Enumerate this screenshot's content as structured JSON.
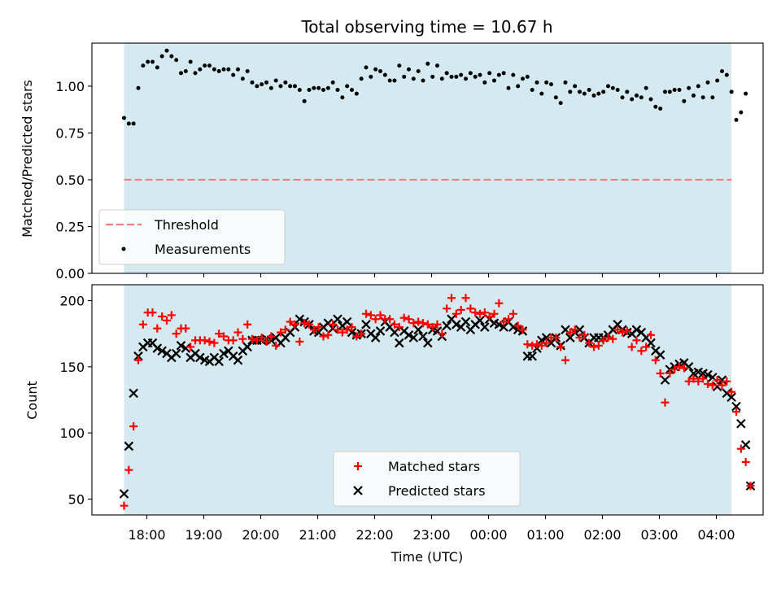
{
  "colors": {
    "background_band": "#d4eaf0",
    "threshold": "#f08080",
    "measurements": "#000000",
    "matched": "#ff0000",
    "predicted": "#000000"
  },
  "chart_data": [
    {
      "type": "scatter",
      "title": "Total observing time = 10.67 h",
      "xlabel": "",
      "ylabel": "Matched/Predicted stars",
      "ylim": [
        0,
        1.23
      ],
      "yticks": [
        "0.00",
        "0.25",
        "0.50",
        "0.75",
        "1.00"
      ],
      "grid": false,
      "legend": "lower-left",
      "shaded_span": {
        "start": "17:36",
        "end": "04:16"
      },
      "threshold": {
        "name": "Threshold",
        "value": 0.5,
        "style": "dashed"
      },
      "series": [
        {
          "name": "Measurements",
          "x_start": "17:36",
          "step_minutes": 5,
          "values": [
            0.83,
            0.8,
            0.8,
            0.99,
            1.11,
            1.13,
            1.13,
            1.1,
            1.16,
            1.19,
            1.16,
            1.14,
            1.07,
            1.08,
            1.13,
            1.07,
            1.09,
            1.11,
            1.11,
            1.09,
            1.08,
            1.09,
            1.09,
            1.06,
            1.09,
            1.04,
            1.08,
            1.02,
            1.0,
            1.01,
            1.02,
            0.99,
            1.03,
            1.0,
            1.02,
            1.0,
            1.0,
            0.98,
            0.92,
            0.98,
            0.99,
            0.99,
            0.98,
            0.99,
            1.02,
            0.98,
            0.94,
            1.0,
            0.98,
            0.96,
            1.04,
            1.1,
            1.05,
            1.09,
            1.08,
            1.06,
            1.03,
            1.03,
            1.11,
            1.05,
            1.09,
            1.04,
            1.08,
            1.03,
            1.12,
            1.05,
            1.11,
            1.04,
            1.07,
            1.05,
            1.05,
            1.06,
            1.04,
            1.07,
            1.05,
            1.06,
            1.02,
            1.07,
            1.03,
            1.06,
            1.07,
            0.99,
            1.06,
            1.0,
            1.04,
            1.05,
            0.98,
            1.02,
            0.96,
            1.02,
            1.01,
            0.94,
            0.91,
            1.02,
            0.97,
            1.0,
            0.97,
            0.96,
            0.98,
            0.95,
            0.96,
            0.97,
            1.0,
            0.99,
            0.98,
            0.94,
            0.97,
            0.93,
            0.95,
            0.94,
            0.99,
            0.93,
            0.89,
            0.88,
            0.97,
            0.97,
            0.98,
            0.98,
            0.92,
            0.99,
            0.95,
            1.0,
            0.94,
            1.02,
            0.94,
            1.03,
            1.08,
            1.06,
            0.97,
            0.82,
            0.86,
            0.96
          ]
        }
      ]
    },
    {
      "type": "scatter",
      "xlabel": "Time (UTC)",
      "ylabel": "Count",
      "ylim": [
        38,
        212
      ],
      "yticks": [
        "50",
        "100",
        "150",
        "200"
      ],
      "xticks": [
        "18:00",
        "19:00",
        "20:00",
        "21:00",
        "22:00",
        "23:00",
        "00:00",
        "01:00",
        "02:00",
        "03:00",
        "04:00"
      ],
      "grid": false,
      "legend": "bottom-center",
      "shaded_span": {
        "start": "17:36",
        "end": "04:16"
      },
      "series": [
        {
          "name": "Matched stars",
          "marker": "+",
          "x_start": "17:36",
          "step_minutes": 5,
          "values": [
            45,
            72,
            105,
            155,
            182,
            191,
            191,
            179,
            188,
            185,
            189,
            175,
            179,
            179,
            165,
            170,
            170,
            170,
            169,
            168,
            175,
            173,
            170,
            170,
            176,
            171,
            182,
            171,
            170,
            172,
            169,
            173,
            166,
            176,
            178,
            184,
            182,
            169,
            183,
            182,
            178,
            180,
            173,
            174,
            182,
            178,
            176,
            178,
            180,
            173,
            175,
            190,
            189,
            186,
            189,
            186,
            186,
            182,
            180,
            187,
            186,
            183,
            184,
            183,
            182,
            180,
            182,
            175,
            194,
            202,
            190,
            193,
            202,
            194,
            191,
            190,
            191,
            188,
            190,
            198,
            184,
            186,
            190,
            181,
            178,
            167,
            166,
            167,
            166,
            168,
            172,
            172,
            165,
            155,
            176,
            178,
            172,
            174,
            168,
            165,
            166,
            170,
            172,
            171,
            178,
            176,
            177,
            165,
            170,
            162,
            165,
            174,
            155,
            145,
            123,
            145,
            148,
            150,
            149,
            139,
            141,
            139,
            141,
            137,
            136,
            140,
            136,
            139,
            131,
            116,
            88,
            78,
            60
          ]
        },
        {
          "name": "Predicted stars",
          "marker": "x",
          "x_start": "17:36",
          "step_minutes": 5,
          "values": [
            54,
            90,
            130,
            158,
            165,
            168,
            168,
            164,
            162,
            160,
            157,
            160,
            166,
            164,
            157,
            160,
            157,
            155,
            154,
            157,
            154,
            160,
            162,
            158,
            155,
            162,
            165,
            170,
            170,
            170,
            171,
            170,
            172,
            168,
            172,
            176,
            180,
            186,
            184,
            182,
            177,
            176,
            180,
            183,
            179,
            186,
            181,
            184,
            176,
            174,
            175,
            182,
            175,
            172,
            177,
            184,
            180,
            176,
            168,
            177,
            174,
            172,
            178,
            173,
            168,
            178,
            177,
            173,
            181,
            186,
            182,
            180,
            184,
            178,
            182,
            185,
            180,
            186,
            183,
            182,
            180,
            184,
            180,
            178,
            177,
            158,
            158,
            164,
            170,
            172,
            168,
            172,
            166,
            178,
            172,
            176,
            178,
            172,
            168,
            172,
            172,
            172,
            174,
            178,
            182,
            178,
            176,
            175,
            178,
            176,
            172,
            168,
            162,
            159,
            140,
            148,
            150,
            152,
            153,
            150,
            145,
            146,
            145,
            144,
            142,
            135,
            140,
            130,
            127,
            120,
            107,
            91,
            60
          ]
        }
      ]
    }
  ]
}
